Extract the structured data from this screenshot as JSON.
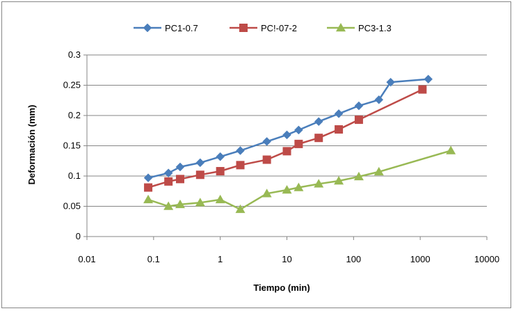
{
  "chart_data": {
    "type": "line",
    "title": "",
    "xlabel": "Tiempo (min)",
    "ylabel": "Deformación (mm)",
    "x_scale": "log",
    "xlim": [
      0.01,
      10000
    ],
    "ylim": [
      0,
      0.3
    ],
    "x_ticks": [
      0.01,
      0.1,
      1,
      10,
      100,
      1000,
      10000
    ],
    "x_tick_labels": [
      "0.01",
      "0.1",
      "1",
      "10",
      "100",
      "1000",
      "10000"
    ],
    "y_ticks": [
      0,
      0.05,
      0.1,
      0.15,
      0.2,
      0.25,
      0.3
    ],
    "y_tick_labels": [
      "0",
      "0.05",
      "0.1",
      "0.15",
      "0.2",
      "0.25",
      "0.3"
    ],
    "grid": "horizontal",
    "legend_position": "top",
    "series": [
      {
        "name": "PC1-0.7",
        "color": "#4a7ebb",
        "marker": "diamond",
        "x": [
          0.083,
          0.167,
          0.25,
          0.5,
          1,
          2,
          5,
          10,
          15,
          30,
          60,
          120,
          240,
          360,
          1320
        ],
        "y": [
          0.097,
          0.105,
          0.115,
          0.122,
          0.132,
          0.142,
          0.157,
          0.168,
          0.176,
          0.19,
          0.203,
          0.216,
          0.226,
          0.255,
          0.26
        ]
      },
      {
        "name": "PC!-07-2",
        "color": "#be4b48",
        "marker": "square",
        "x": [
          0.083,
          0.167,
          0.25,
          0.5,
          1,
          2,
          5,
          10,
          15,
          30,
          60,
          120,
          1080
        ],
        "y": [
          0.081,
          0.091,
          0.095,
          0.102,
          0.108,
          0.118,
          0.127,
          0.141,
          0.153,
          0.163,
          0.177,
          0.193,
          0.243
        ]
      },
      {
        "name": "PC3-1.3",
        "color": "#98b954",
        "marker": "triangle",
        "x": [
          0.083,
          0.167,
          0.25,
          0.5,
          1,
          2,
          5,
          10,
          15,
          30,
          60,
          120,
          240,
          2880
        ],
        "y": [
          0.061,
          0.05,
          0.053,
          0.056,
          0.061,
          0.045,
          0.071,
          0.077,
          0.081,
          0.087,
          0.092,
          0.099,
          0.107,
          0.142
        ]
      }
    ]
  },
  "colors": {
    "axis": "#868686",
    "gridline": "#868686",
    "background": "#ffffff"
  }
}
